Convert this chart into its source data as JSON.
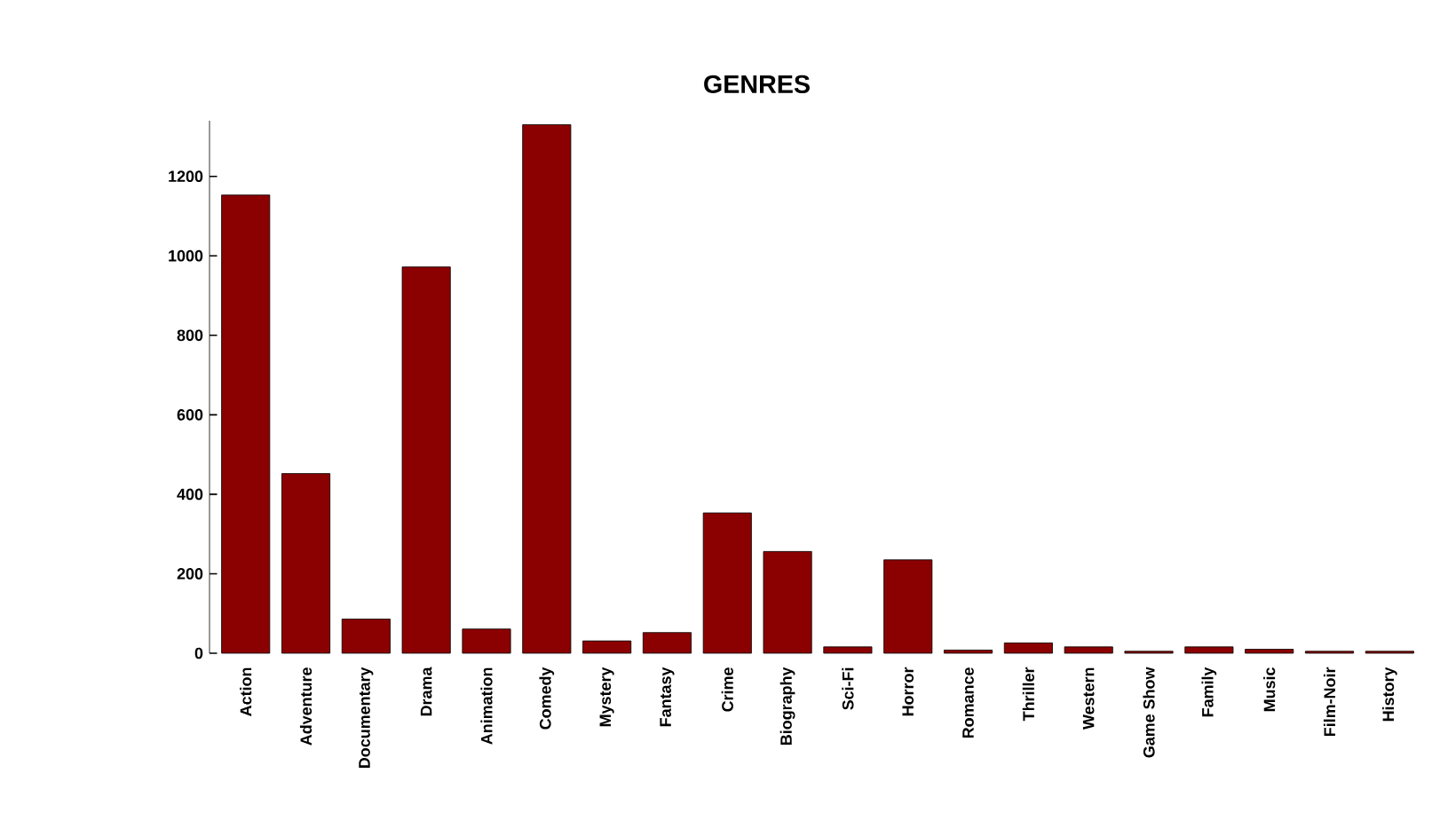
{
  "chart_data": {
    "type": "bar",
    "title": "GENRES",
    "categories": [
      "Action",
      "Adventure",
      "Documentary",
      "Drama",
      "Animation",
      "Comedy",
      "Mystery",
      "Fantasy",
      "Crime",
      "Biography",
      "Sci-Fi",
      "Horror",
      "Romance",
      "Thriller",
      "Western",
      "Game Show",
      "Family",
      "Music",
      "Film-Noir",
      "History"
    ],
    "values": [
      1153,
      452,
      86,
      972,
      61,
      1330,
      31,
      52,
      353,
      256,
      16,
      235,
      8,
      26,
      16,
      5,
      16,
      10,
      5,
      5
    ],
    "color": "#8b0000",
    "ylim": [
      0,
      1340
    ],
    "yticks": [
      0,
      200,
      400,
      600,
      800,
      1000,
      1200
    ],
    "grid": false
  }
}
